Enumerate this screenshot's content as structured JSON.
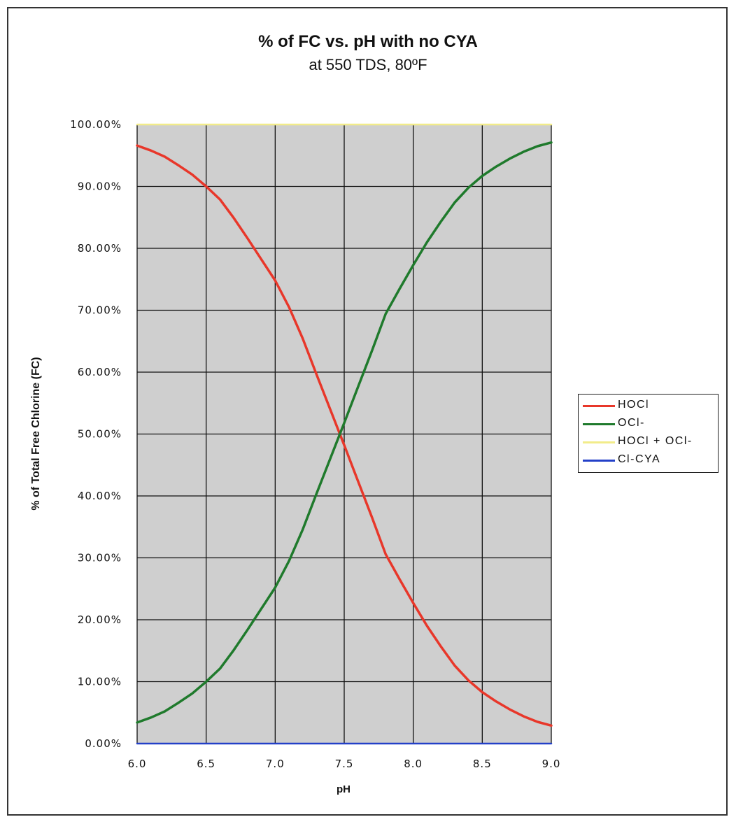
{
  "chart_data": {
    "type": "line",
    "title": "% of FC vs. pH with no CYA",
    "subtitle": "at 550 TDS, 80ºF",
    "xlabel": "pH",
    "ylabel": "% of Total Free Chlorine (FC)",
    "xlim": [
      6.0,
      9.0
    ],
    "ylim": [
      0,
      100
    ],
    "x_ticks": [
      "6.0",
      "6.5",
      "7.0",
      "7.5",
      "8.0",
      "8.5",
      "9.0"
    ],
    "y_ticks": [
      "0.00%",
      "10.00%",
      "20.00%",
      "30.00%",
      "40.00%",
      "50.00%",
      "60.00%",
      "70.00%",
      "80.00%",
      "90.00%",
      "100.00%"
    ],
    "grid": true,
    "legend_position": "right",
    "x": [
      6.0,
      6.1,
      6.2,
      6.3,
      6.4,
      6.5,
      6.6,
      6.7,
      6.8,
      6.9,
      7.0,
      7.1,
      7.2,
      7.3,
      7.4,
      7.5,
      7.6,
      7.7,
      7.8,
      7.9,
      8.0,
      8.1,
      8.2,
      8.3,
      8.4,
      8.5,
      8.6,
      8.7,
      8.8,
      8.9,
      9.0
    ],
    "series": [
      {
        "name": "HOCl",
        "color": "#e8372a",
        "values": [
          96.6,
          95.8,
          94.8,
          93.4,
          91.9,
          90.0,
          87.9,
          84.9,
          81.6,
          78.2,
          74.8,
          70.5,
          65.4,
          59.6,
          53.9,
          48.2,
          42.4,
          36.6,
          30.6,
          26.6,
          22.7,
          19.0,
          15.7,
          12.6,
          10.2,
          8.3,
          6.8,
          5.5,
          4.4,
          3.5,
          2.9
        ]
      },
      {
        "name": "OCl-",
        "color": "#1f7a2c",
        "values": [
          3.4,
          4.2,
          5.2,
          6.6,
          8.1,
          10.0,
          12.1,
          15.1,
          18.4,
          21.8,
          25.2,
          29.5,
          34.6,
          40.4,
          46.1,
          51.8,
          57.6,
          63.4,
          69.4,
          73.4,
          77.3,
          81.0,
          84.3,
          87.4,
          89.8,
          91.7,
          93.2,
          94.5,
          95.6,
          96.5,
          97.1
        ]
      },
      {
        "name": "HOCl + OCl-",
        "color": "#f2ec8a",
        "values": [
          100,
          100,
          100,
          100,
          100,
          100,
          100,
          100,
          100,
          100,
          100,
          100,
          100,
          100,
          100,
          100,
          100,
          100,
          100,
          100,
          100,
          100,
          100,
          100,
          100,
          100,
          100,
          100,
          100,
          100,
          100
        ]
      },
      {
        "name": "Cl-CYA",
        "color": "#2340c8",
        "values": [
          0,
          0,
          0,
          0,
          0,
          0,
          0,
          0,
          0,
          0,
          0,
          0,
          0,
          0,
          0,
          0,
          0,
          0,
          0,
          0,
          0,
          0,
          0,
          0,
          0,
          0,
          0,
          0,
          0,
          0,
          0
        ]
      }
    ]
  },
  "legend": {
    "items": [
      {
        "label": "HOCl",
        "color": "#e8372a"
      },
      {
        "label": "OCl-",
        "color": "#1f7a2c"
      },
      {
        "label": "HOCl + OCl-",
        "color": "#f2ec8a"
      },
      {
        "label": "Cl-CYA",
        "color": "#2340c8"
      }
    ]
  },
  "colors": {
    "plot_background": "#cfcfcf",
    "grid": "#111111"
  }
}
